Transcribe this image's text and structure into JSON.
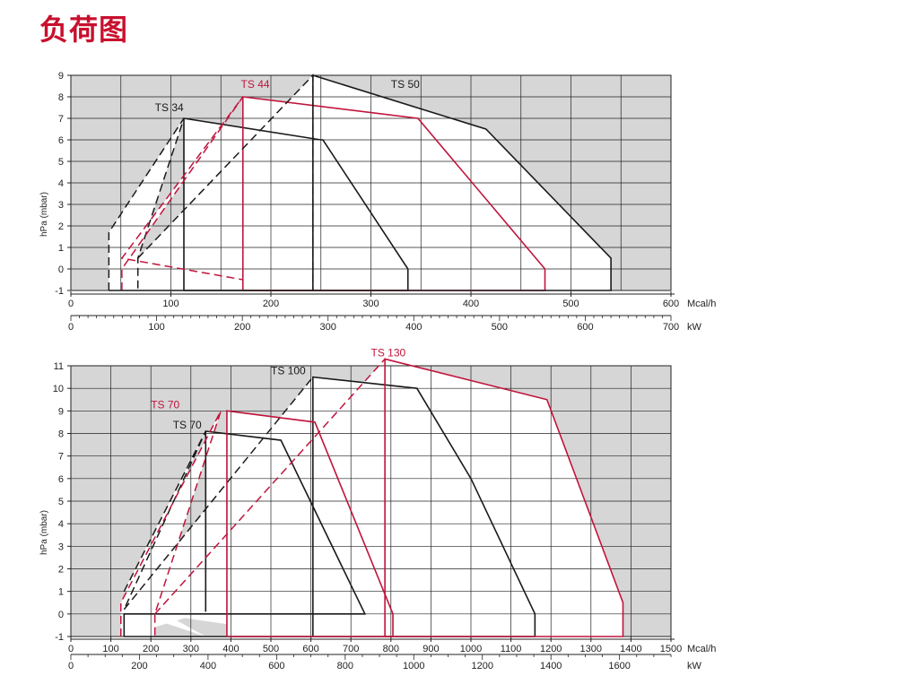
{
  "page_title": "负荷图",
  "colors": {
    "black": "#1a1a1a",
    "red": "#c0143c",
    "shade": "#d6d6d6",
    "grid": "#222222",
    "title": "#c8102e"
  },
  "chart_data": [
    {
      "type": "line",
      "ylabel": "hPa (mbar)",
      "xlabel": "Mcal/h",
      "x2label": "kW",
      "xlim": [
        0,
        600
      ],
      "ylim": [
        -1,
        9
      ],
      "x_ticks": [
        0,
        100,
        200,
        300,
        400,
        500,
        600
      ],
      "x2_ticks": [
        0,
        100,
        200,
        300,
        400,
        500,
        600,
        700
      ],
      "y_ticks": [
        9,
        8,
        7,
        6,
        5,
        4,
        3,
        2,
        1,
        0,
        -1
      ],
      "grid": true,
      "series": [
        {
          "name": "TS 34",
          "color": "black",
          "label_at": [
            84,
            7.2
          ],
          "dashed": [
            [
              38,
              -1
            ],
            [
              38,
              1.7
            ],
            [
              113,
              7
            ],
            [
              113,
              7
            ],
            [
              67,
              0.5
            ],
            [
              67,
              -1
            ]
          ],
          "solid": [
            [
              113,
              -1
            ],
            [
              113,
              7
            ],
            [
              250,
              6
            ],
            [
              252,
              6
            ],
            [
              337,
              0
            ],
            [
              337,
              -1
            ],
            [
              113,
              -1
            ]
          ]
        },
        {
          "name": "TS 44",
          "color": "red",
          "label_at": [
            170,
            8.3
          ],
          "dashed": [
            [
              51,
              -1
            ],
            [
              51,
              0
            ],
            [
              172,
              8
            ],
            [
              51,
              0.5
            ],
            [
              172,
              -0.5
            ]
          ],
          "solid": [
            [
              172,
              -1
            ],
            [
              172,
              8
            ],
            [
              347,
              7
            ],
            [
              474,
              0
            ],
            [
              474,
              -1
            ],
            [
              172,
              -1
            ]
          ]
        },
        {
          "name": "TS 50",
          "color": "black",
          "label_at": [
            320,
            8.3
          ],
          "dashed": [
            [
              67,
              0.5
            ],
            [
              242,
              9
            ],
            [
              242,
              -1
            ]
          ],
          "solid": [
            [
              242,
              9
            ],
            [
              242,
              -1
            ],
            [
              242,
              9
            ],
            [
              415,
              6.5
            ],
            [
              540,
              0.5
            ],
            [
              540,
              -1
            ],
            [
              242,
              -1
            ],
            [
              38,
              -1
            ]
          ]
        }
      ]
    },
    {
      "type": "line",
      "ylabel": "hPa (mbar)",
      "xlabel": "Mcal/h",
      "x2label": "kW",
      "xlim": [
        0,
        1500
      ],
      "ylim": [
        -1,
        11
      ],
      "x_ticks": [
        0,
        100,
        200,
        300,
        400,
        500,
        600,
        700,
        800,
        900,
        1000,
        1100,
        1200,
        1300,
        1400,
        1500
      ],
      "x2_ticks": [
        0,
        200,
        400,
        600,
        800,
        1000,
        1200,
        1400,
        1600
      ],
      "y_ticks": [
        11,
        10,
        9,
        8,
        7,
        6,
        5,
        4,
        3,
        2,
        1,
        0,
        -1
      ],
      "grid": true,
      "series": [
        {
          "name": "TS 70",
          "color": "black",
          "label_at": [
            255,
            8.1
          ],
          "dashed": [
            [
              133,
              1
            ],
            [
              337,
              8.1
            ],
            [
              133,
              0.2
            ]
          ],
          "solid": [
            [
              337,
              0.1
            ],
            [
              337,
              8.1
            ],
            [
              525,
              7.7
            ],
            [
              735,
              0
            ],
            [
              133,
              0
            ],
            [
              133,
              -1
            ]
          ]
        },
        {
          "name": "TS 100",
          "color": "black",
          "label_at": [
            500,
            10.5
          ],
          "dashed": [
            [
              133,
              0.2
            ],
            [
              605,
              10.5
            ]
          ],
          "solid": [
            [
              605,
              -1
            ],
            [
              605,
              10.5
            ],
            [
              865,
              10
            ],
            [
              1000,
              6
            ],
            [
              1160,
              0
            ],
            [
              1160,
              -1
            ],
            [
              133,
              -1
            ]
          ]
        },
        {
          "name": "TS 70",
          "color": "red",
          "label_at": [
            200,
            9
          ],
          "dashed": [
            [
              125,
              -1
            ],
            [
              125,
              0.5
            ],
            [
              375,
              9
            ],
            [
              210,
              0
            ],
            [
              210,
              -1
            ]
          ],
          "solid": [
            [
              390,
              -1
            ],
            [
              390,
              9
            ],
            [
              610,
              8.5
            ],
            [
              805,
              0
            ],
            [
              805,
              -1
            ],
            [
              390,
              -1
            ]
          ]
        },
        {
          "name": "TS 130",
          "color": "red",
          "label_at": [
            750,
            11.3
          ],
          "dashed": [
            [
              210,
              0
            ],
            [
              785,
              11.3
            ]
          ],
          "solid": [
            [
              785,
              -1
            ],
            [
              785,
              11.3
            ],
            [
              1190,
              9.5
            ],
            [
              1380,
              0.5
            ],
            [
              1380,
              -1
            ],
            [
              785,
              -1
            ]
          ]
        }
      ],
      "label_overrides": {
        "TS 70 red": "TS 70"
      }
    }
  ]
}
